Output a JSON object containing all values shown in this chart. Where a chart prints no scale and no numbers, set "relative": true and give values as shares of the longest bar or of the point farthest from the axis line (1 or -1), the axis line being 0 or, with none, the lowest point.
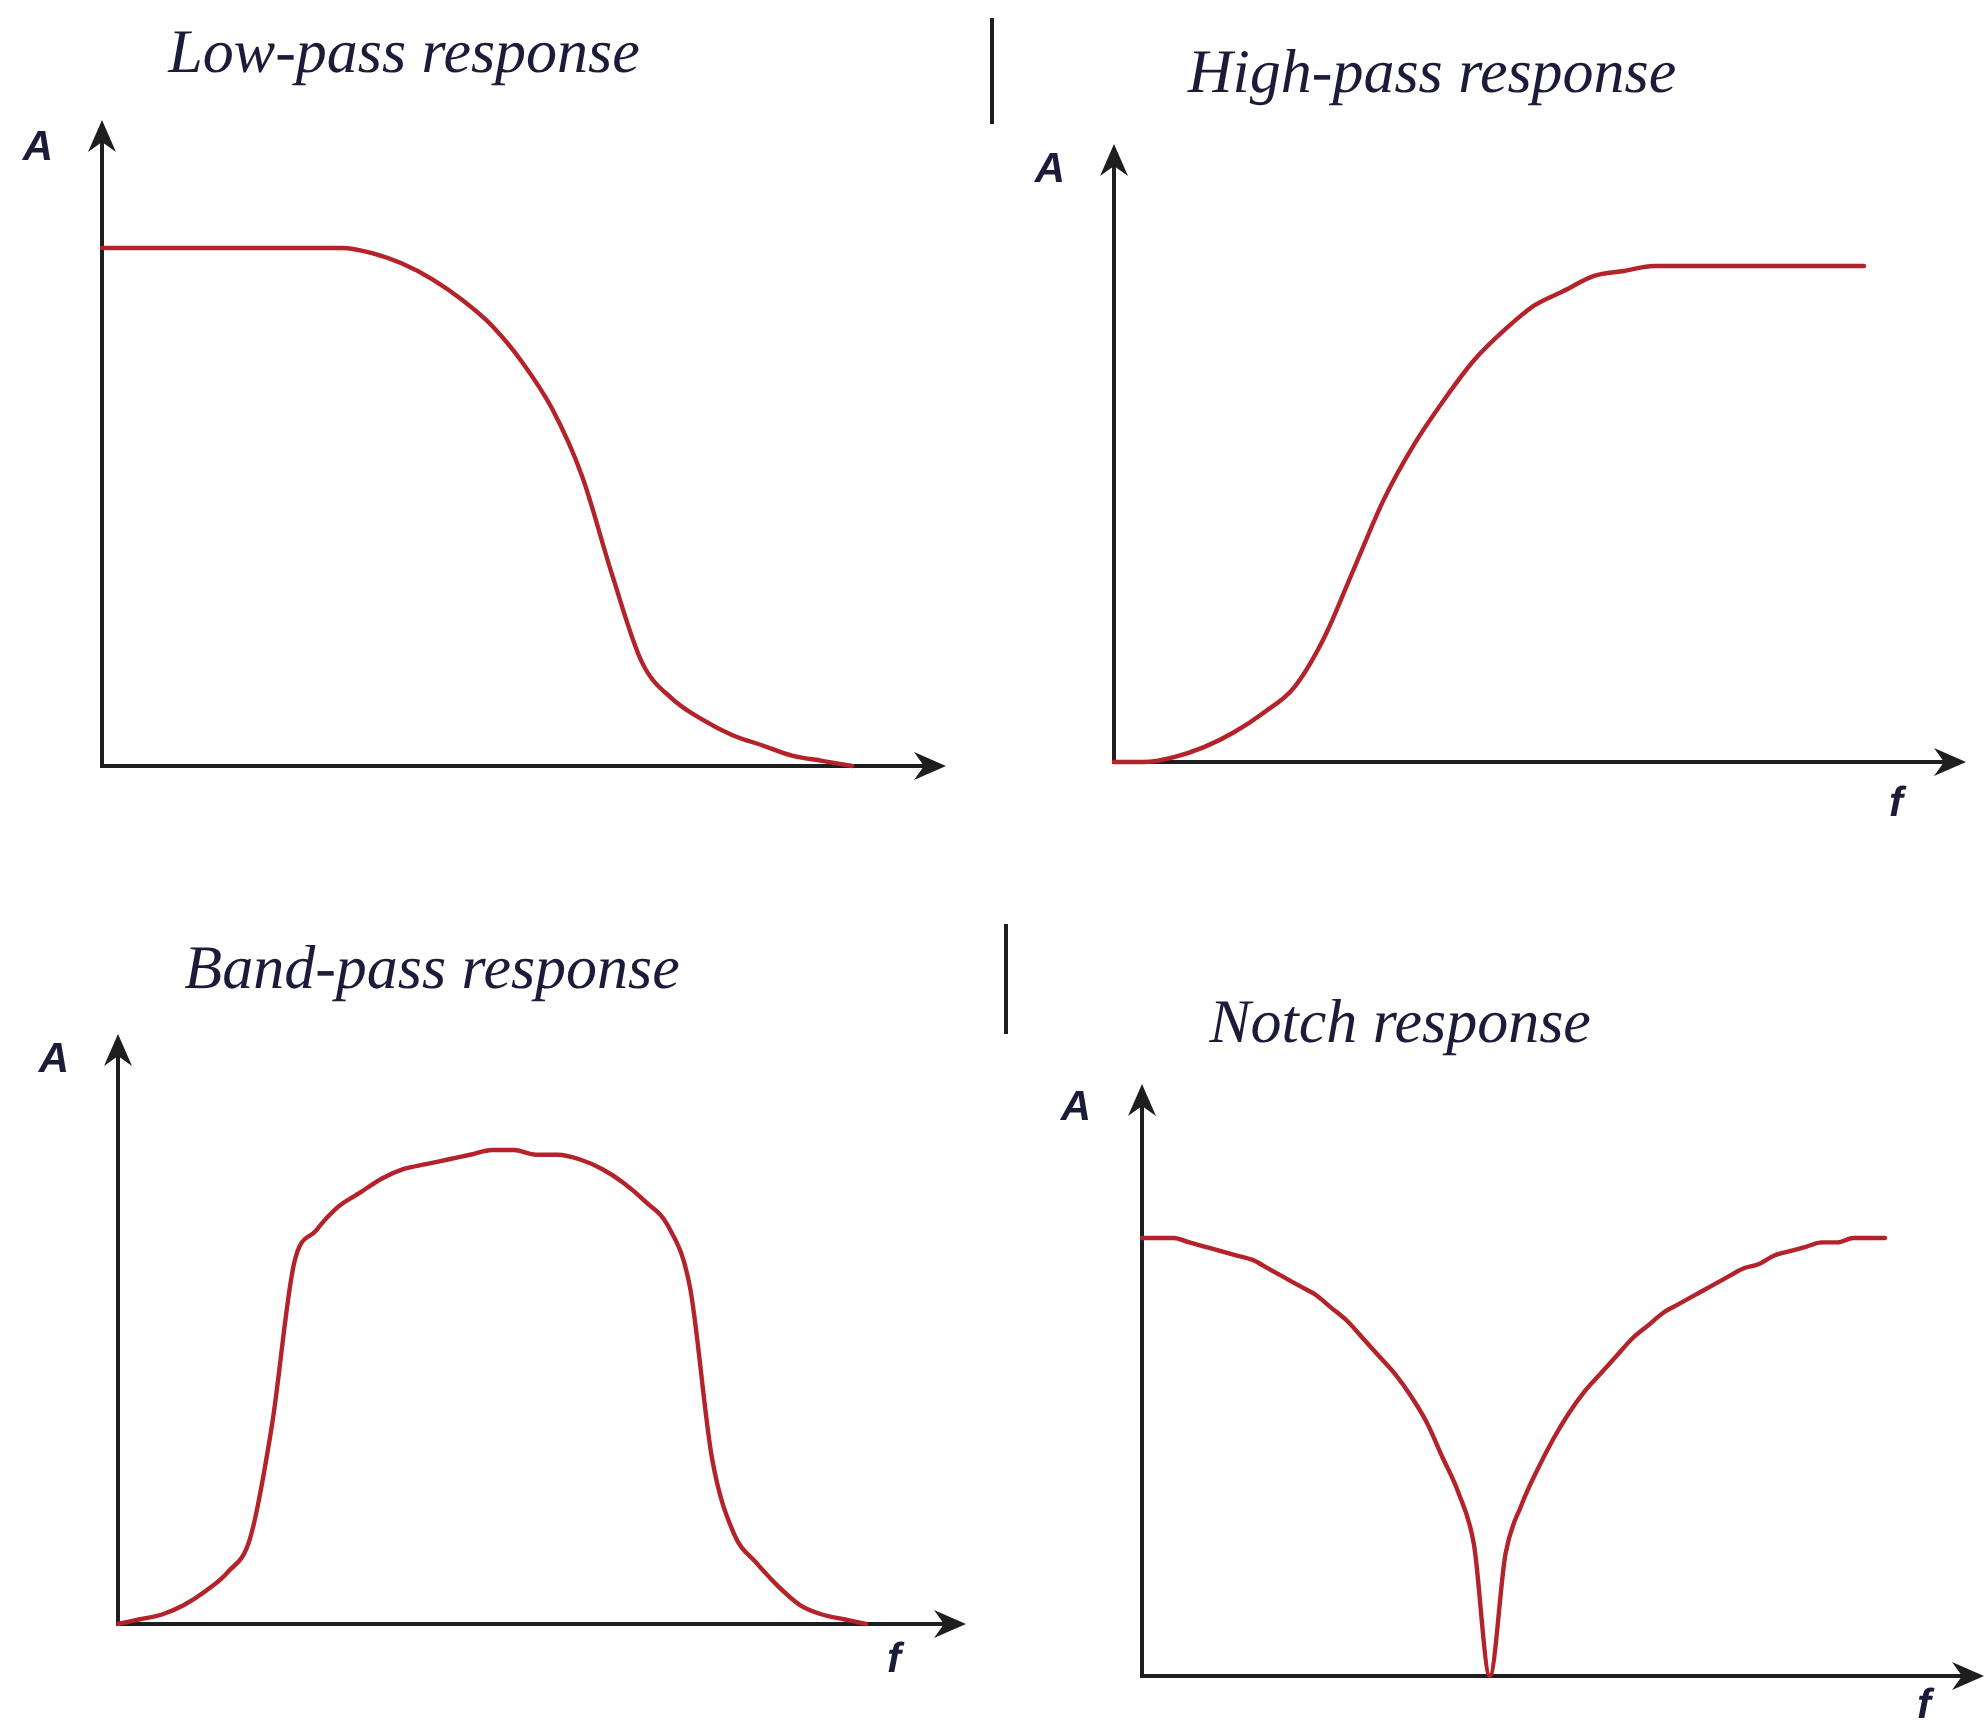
{
  "chart_data": [
    {
      "type": "line",
      "title": "Low-pass response",
      "ylabel": "A",
      "relative": true,
      "categories": [
        null,
        null,
        null,
        null,
        null,
        null,
        null,
        null,
        null,
        null,
        null,
        null,
        null,
        null,
        null,
        null,
        null,
        null,
        null,
        null,
        null,
        null,
        null,
        null,
        null,
        null,
        null,
        null,
        null
      ],
      "color": "#b4232a",
      "values": [
        1,
        1,
        1,
        1,
        1,
        1,
        1,
        1,
        1,
        0.99,
        0.97,
        0.94,
        0.9,
        0.85,
        0.78,
        0.69,
        0.56,
        0.37,
        0.2,
        0.13,
        0.09,
        0.06,
        0.04,
        0.02,
        0.01,
        0,
        null,
        null,
        null
      ]
    },
    {
      "type": "line",
      "title": "High-pass response",
      "xlabel": "f",
      "ylabel": "A",
      "relative": true,
      "categories": [
        null,
        null,
        null,
        null,
        null,
        null,
        null,
        null,
        null,
        null,
        null,
        null,
        null,
        null,
        null,
        null,
        null,
        null,
        null,
        null,
        null,
        null,
        null,
        null,
        null,
        null,
        null,
        null,
        null
      ],
      "color": "#b4232a",
      "values": [
        0,
        0,
        0.01,
        0.03,
        0.06,
        0.1,
        0.15,
        0.25,
        0.39,
        0.53,
        0.64,
        0.73,
        0.81,
        0.87,
        0.92,
        0.95,
        0.98,
        0.99,
        1,
        1,
        1,
        1,
        1,
        1,
        1,
        1,
        null,
        null,
        null
      ]
    },
    {
      "type": "line",
      "title": "Band-pass response",
      "xlabel": "f",
      "ylabel": "A",
      "relative": true,
      "categories": [
        null,
        null,
        null,
        null,
        null,
        null,
        null,
        null,
        null,
        null,
        null,
        null,
        null,
        null,
        null,
        null,
        null,
        null,
        null,
        null,
        null,
        null,
        null,
        null,
        null,
        null,
        null,
        null,
        null,
        null,
        null,
        null,
        null,
        null,
        null,
        null,
        null,
        null,
        null
      ],
      "color": "#b4232a",
      "values": [
        0,
        0.01,
        0.02,
        0.04,
        0.07,
        0.11,
        0.18,
        0.42,
        0.76,
        0.83,
        0.88,
        0.91,
        0.94,
        0.96,
        0.97,
        0.98,
        0.99,
        1,
        1,
        0.99,
        0.99,
        0.98,
        0.96,
        0.93,
        0.89,
        0.84,
        0.71,
        0.35,
        0.19,
        0.13,
        0.08,
        0.04,
        0.02,
        0.01,
        0,
        null,
        null,
        null,
        null
      ]
    },
    {
      "type": "line",
      "title": "Notch response",
      "xlabel": "f",
      "ylabel": "A",
      "relative": true,
      "categories": [
        null,
        null,
        null,
        null,
        null,
        null,
        null,
        null,
        null,
        null,
        null,
        null,
        null,
        null,
        null,
        null,
        null,
        null,
        null,
        null,
        null,
        null,
        null,
        null,
        null,
        null,
        null,
        null,
        null,
        null,
        null,
        null,
        null,
        null,
        null,
        null,
        null,
        null,
        null,
        null,
        null,
        null,
        null,
        null,
        null,
        null,
        null,
        null,
        null,
        null,
        null,
        null,
        null
      ],
      "color": "#b4232a",
      "values": [
        1,
        1,
        1,
        0.99,
        0.98,
        0.97,
        0.96,
        0.95,
        0.93,
        0.91,
        0.89,
        0.87,
        0.84,
        0.81,
        0.77,
        0.73,
        0.69,
        0.64,
        0.58,
        0.5,
        0.42,
        0.3,
        0,
        0.28,
        0.39,
        0.47,
        0.54,
        0.6,
        0.65,
        0.69,
        0.73,
        0.77,
        0.8,
        0.83,
        0.85,
        0.87,
        0.89,
        0.91,
        0.93,
        0.94,
        0.96,
        0.97,
        0.98,
        0.99,
        0.99,
        1,
        1,
        1,
        null,
        null,
        null,
        null,
        null
      ]
    }
  ]
}
